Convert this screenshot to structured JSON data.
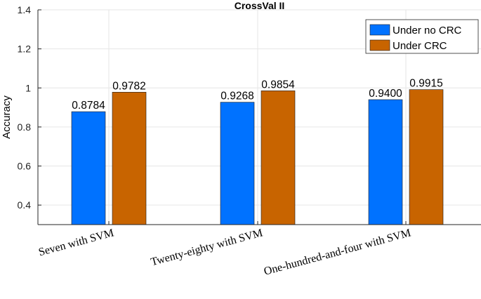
{
  "chart_data": {
    "type": "bar",
    "title": "CrossVal II",
    "xlabel": "",
    "ylabel": "Accuracy",
    "ylim": [
      0.3,
      1.4
    ],
    "yticks": [
      "0.4",
      "0.6",
      "0.8",
      "1",
      "1.2",
      "1.4"
    ],
    "grid": true,
    "legend_position": "top-right",
    "categories": [
      "Seven with SVM",
      "Twenty-eighty with SVM",
      "One-hundred-and-four with SVM"
    ],
    "series": [
      {
        "name": "Under no CRC",
        "color": "#0072FF",
        "values": [
          0.8784,
          0.9268,
          0.94
        ],
        "labels": [
          "0.8784",
          "0.9268",
          "0.9400"
        ]
      },
      {
        "name": "Under CRC",
        "color": "#C86400",
        "values": [
          0.9782,
          0.9854,
          0.9915
        ],
        "labels": [
          "0.9782",
          "0.9854",
          "0.9915"
        ]
      }
    ]
  }
}
